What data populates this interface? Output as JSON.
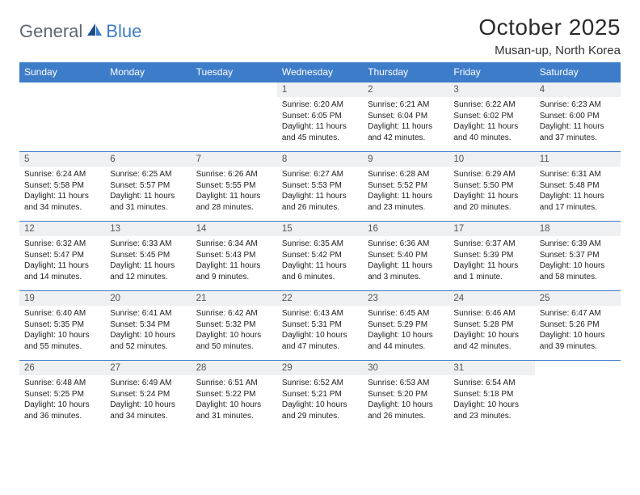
{
  "logo": {
    "part1": "General",
    "part2": "Blue"
  },
  "title": "October 2025",
  "location": "Musan-up, North Korea",
  "colors": {
    "header_bg": "#3d7cc9",
    "header_text": "#ffffff",
    "daynum_bg": "#eef0f1",
    "border": "#3d7cc9",
    "logo_gray": "#5b6770",
    "logo_blue": "#3d7cc9",
    "text": "#222222",
    "page_bg": "#ffffff"
  },
  "day_headers": [
    "Sunday",
    "Monday",
    "Tuesday",
    "Wednesday",
    "Thursday",
    "Friday",
    "Saturday"
  ],
  "weeks": [
    [
      null,
      null,
      null,
      {
        "n": "1",
        "sunrise": "6:20 AM",
        "sunset": "6:05 PM",
        "dl": "11 hours and 45 minutes."
      },
      {
        "n": "2",
        "sunrise": "6:21 AM",
        "sunset": "6:04 PM",
        "dl": "11 hours and 42 minutes."
      },
      {
        "n": "3",
        "sunrise": "6:22 AM",
        "sunset": "6:02 PM",
        "dl": "11 hours and 40 minutes."
      },
      {
        "n": "4",
        "sunrise": "6:23 AM",
        "sunset": "6:00 PM",
        "dl": "11 hours and 37 minutes."
      }
    ],
    [
      {
        "n": "5",
        "sunrise": "6:24 AM",
        "sunset": "5:58 PM",
        "dl": "11 hours and 34 minutes."
      },
      {
        "n": "6",
        "sunrise": "6:25 AM",
        "sunset": "5:57 PM",
        "dl": "11 hours and 31 minutes."
      },
      {
        "n": "7",
        "sunrise": "6:26 AM",
        "sunset": "5:55 PM",
        "dl": "11 hours and 28 minutes."
      },
      {
        "n": "8",
        "sunrise": "6:27 AM",
        "sunset": "5:53 PM",
        "dl": "11 hours and 26 minutes."
      },
      {
        "n": "9",
        "sunrise": "6:28 AM",
        "sunset": "5:52 PM",
        "dl": "11 hours and 23 minutes."
      },
      {
        "n": "10",
        "sunrise": "6:29 AM",
        "sunset": "5:50 PM",
        "dl": "11 hours and 20 minutes."
      },
      {
        "n": "11",
        "sunrise": "6:31 AM",
        "sunset": "5:48 PM",
        "dl": "11 hours and 17 minutes."
      }
    ],
    [
      {
        "n": "12",
        "sunrise": "6:32 AM",
        "sunset": "5:47 PM",
        "dl": "11 hours and 14 minutes."
      },
      {
        "n": "13",
        "sunrise": "6:33 AM",
        "sunset": "5:45 PM",
        "dl": "11 hours and 12 minutes."
      },
      {
        "n": "14",
        "sunrise": "6:34 AM",
        "sunset": "5:43 PM",
        "dl": "11 hours and 9 minutes."
      },
      {
        "n": "15",
        "sunrise": "6:35 AM",
        "sunset": "5:42 PM",
        "dl": "11 hours and 6 minutes."
      },
      {
        "n": "16",
        "sunrise": "6:36 AM",
        "sunset": "5:40 PM",
        "dl": "11 hours and 3 minutes."
      },
      {
        "n": "17",
        "sunrise": "6:37 AM",
        "sunset": "5:39 PM",
        "dl": "11 hours and 1 minute."
      },
      {
        "n": "18",
        "sunrise": "6:39 AM",
        "sunset": "5:37 PM",
        "dl": "10 hours and 58 minutes."
      }
    ],
    [
      {
        "n": "19",
        "sunrise": "6:40 AM",
        "sunset": "5:35 PM",
        "dl": "10 hours and 55 minutes."
      },
      {
        "n": "20",
        "sunrise": "6:41 AM",
        "sunset": "5:34 PM",
        "dl": "10 hours and 52 minutes."
      },
      {
        "n": "21",
        "sunrise": "6:42 AM",
        "sunset": "5:32 PM",
        "dl": "10 hours and 50 minutes."
      },
      {
        "n": "22",
        "sunrise": "6:43 AM",
        "sunset": "5:31 PM",
        "dl": "10 hours and 47 minutes."
      },
      {
        "n": "23",
        "sunrise": "6:45 AM",
        "sunset": "5:29 PM",
        "dl": "10 hours and 44 minutes."
      },
      {
        "n": "24",
        "sunrise": "6:46 AM",
        "sunset": "5:28 PM",
        "dl": "10 hours and 42 minutes."
      },
      {
        "n": "25",
        "sunrise": "6:47 AM",
        "sunset": "5:26 PM",
        "dl": "10 hours and 39 minutes."
      }
    ],
    [
      {
        "n": "26",
        "sunrise": "6:48 AM",
        "sunset": "5:25 PM",
        "dl": "10 hours and 36 minutes."
      },
      {
        "n": "27",
        "sunrise": "6:49 AM",
        "sunset": "5:24 PM",
        "dl": "10 hours and 34 minutes."
      },
      {
        "n": "28",
        "sunrise": "6:51 AM",
        "sunset": "5:22 PM",
        "dl": "10 hours and 31 minutes."
      },
      {
        "n": "29",
        "sunrise": "6:52 AM",
        "sunset": "5:21 PM",
        "dl": "10 hours and 29 minutes."
      },
      {
        "n": "30",
        "sunrise": "6:53 AM",
        "sunset": "5:20 PM",
        "dl": "10 hours and 26 minutes."
      },
      {
        "n": "31",
        "sunrise": "6:54 AM",
        "sunset": "5:18 PM",
        "dl": "10 hours and 23 minutes."
      },
      null
    ]
  ],
  "labels": {
    "sunrise": "Sunrise:",
    "sunset": "Sunset:",
    "daylight": "Daylight:"
  }
}
